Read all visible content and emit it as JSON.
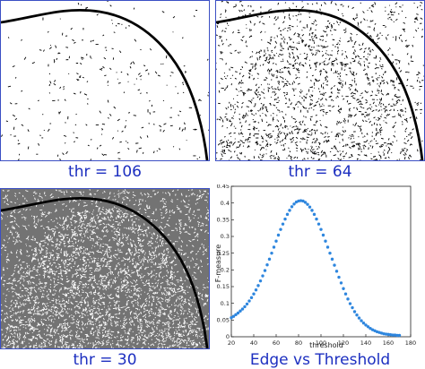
{
  "panels": [
    {
      "id": "p1",
      "caption": "thr = 106"
    },
    {
      "id": "p2",
      "caption": "thr = 64"
    },
    {
      "id": "p3",
      "caption": "thr = 30"
    }
  ],
  "plot_caption": "Edge vs Threshold",
  "colors": {
    "caption": "#1c2fc0",
    "series": "#2e86de",
    "frame": "#3b4fc4"
  },
  "chart_data": {
    "type": "scatter",
    "title": "",
    "xlabel": "threshold",
    "ylabel": "F-measure",
    "xlim": [
      20,
      180
    ],
    "ylim": [
      0,
      0.45
    ],
    "xticks": [
      "20",
      "40",
      "60",
      "80",
      "100",
      "120",
      "140",
      "160",
      "180"
    ],
    "yticks": [
      "0",
      "0.05",
      "0.1",
      "0.15",
      "0.2",
      "0.25",
      "0.3",
      "0.35",
      "0.4",
      "0.45"
    ],
    "grid": false,
    "series": [
      {
        "x": [
          20,
          22,
          24,
          26,
          28,
          30,
          32,
          34,
          36,
          38,
          40,
          42,
          44,
          46,
          48,
          50,
          52,
          54,
          56,
          58,
          60,
          62,
          64,
          66,
          68,
          70,
          72,
          74,
          76,
          78,
          80,
          82,
          84,
          86,
          88,
          90,
          92,
          94,
          96,
          98,
          100,
          102,
          104,
          106,
          108,
          110,
          112,
          114,
          116,
          118,
          120,
          122,
          124,
          126,
          128,
          130,
          132,
          134,
          136,
          138,
          140,
          142,
          144,
          146,
          148,
          150,
          152,
          154,
          156,
          158,
          160,
          162,
          164,
          166,
          168,
          170
        ],
        "y": [
          0.057,
          0.061,
          0.066,
          0.071,
          0.077,
          0.083,
          0.09,
          0.098,
          0.107,
          0.117,
          0.128,
          0.14,
          0.153,
          0.167,
          0.182,
          0.198,
          0.215,
          0.232,
          0.25,
          0.268,
          0.286,
          0.304,
          0.321,
          0.337,
          0.352,
          0.366,
          0.378,
          0.389,
          0.397,
          0.403,
          0.406,
          0.407,
          0.406,
          0.402,
          0.396,
          0.388,
          0.378,
          0.366,
          0.352,
          0.337,
          0.321,
          0.304,
          0.286,
          0.268,
          0.25,
          0.232,
          0.214,
          0.196,
          0.178,
          0.161,
          0.144,
          0.128,
          0.113,
          0.099,
          0.087,
          0.075,
          0.065,
          0.056,
          0.048,
          0.041,
          0.035,
          0.03,
          0.025,
          0.021,
          0.018,
          0.015,
          0.013,
          0.011,
          0.009,
          0.008,
          0.007,
          0.006,
          0.005,
          0.005,
          0.004,
          0.004
        ]
      }
    ]
  }
}
